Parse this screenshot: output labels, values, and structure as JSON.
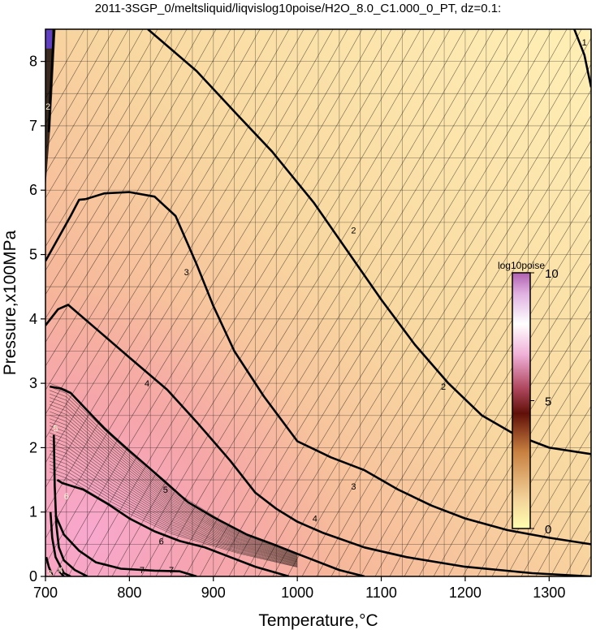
{
  "chart_data": {
    "type": "heatmap",
    "title": "2011-3SGP_0/meltsliquid/liqvislog10poise/H2O_8.0_C1.000_0_PT, dz=0.1:",
    "xlabel": "Temperature,°C",
    "ylabel": "Pressure,x100MPa",
    "xlim": [
      700,
      1350
    ],
    "ylim": [
      0,
      8.5
    ],
    "x_ticks": [
      700,
      800,
      900,
      1000,
      1100,
      1200,
      1300
    ],
    "y_ticks": [
      0,
      1,
      2,
      3,
      4,
      5,
      6,
      7,
      8
    ],
    "x_grid_step": 25,
    "y_grid_step": 0.5,
    "grid": true,
    "colorbar": {
      "title": "log10poise",
      "range": [
        0,
        10
      ],
      "ticks": [
        0,
        5,
        10
      ],
      "colors": [
        "#ffffb0",
        "#f2d098",
        "#c88040",
        "#601008",
        "#b04860",
        "#f0b0d8",
        "#ffffff",
        "#e0b0e0",
        "#b060b0"
      ]
    },
    "contours": [
      {
        "level": 2,
        "points": [
          [
            700,
            4.9
          ],
          [
            730,
            5.6
          ],
          [
            740,
            5.85
          ],
          [
            748,
            5.86
          ]
        ],
        "labels": []
      },
      {
        "level": 3,
        "points": [
          [
            748,
            5.86
          ],
          [
            770,
            5.95
          ],
          [
            800,
            5.97
          ],
          [
            830,
            5.9
          ],
          [
            855,
            5.6
          ],
          [
            880,
            4.85
          ],
          [
            900,
            4.2
          ],
          [
            925,
            3.5
          ],
          [
            960,
            2.8
          ],
          [
            1000,
            2.1
          ],
          [
            1040,
            1.85
          ],
          [
            1080,
            1.65
          ],
          [
            1120,
            1.35
          ],
          [
            1160,
            1.1
          ],
          [
            1200,
            0.9
          ],
          [
            1250,
            0.72
          ],
          [
            1300,
            0.6
          ],
          [
            1350,
            0.5
          ]
        ],
        "labels": [
          [
            868,
            4.73
          ],
          [
            1067,
            1.4
          ]
        ]
      },
      {
        "level": 2,
        "points": [
          [
            822,
            8.5
          ],
          [
            880,
            7.85
          ],
          [
            930,
            7.15
          ],
          [
            970,
            6.6
          ],
          [
            1020,
            5.8
          ],
          [
            1060,
            5.05
          ],
          [
            1100,
            4.3
          ],
          [
            1140,
            3.6
          ],
          [
            1180,
            3.0
          ],
          [
            1220,
            2.5
          ],
          [
            1260,
            2.2
          ],
          [
            1300,
            2.0
          ],
          [
            1350,
            1.9
          ]
        ],
        "labels": [
          [
            1067,
            5.38
          ],
          [
            1174,
            2.95
          ]
        ]
      },
      {
        "level": 4,
        "points": [
          [
            700,
            3.9
          ],
          [
            715,
            4.15
          ],
          [
            727,
            4.22
          ],
          [
            760,
            3.85
          ],
          [
            800,
            3.4
          ],
          [
            845,
            2.9
          ],
          [
            880,
            2.4
          ],
          [
            920,
            1.8
          ],
          [
            950,
            1.3
          ],
          [
            975,
            1.05
          ],
          [
            1000,
            0.85
          ],
          [
            1030,
            0.68
          ],
          [
            1080,
            0.45
          ],
          [
            1130,
            0.3
          ],
          [
            1200,
            0.15
          ],
          [
            1280,
            0.05
          ],
          [
            1350,
            0.0
          ]
        ],
        "labels": [
          [
            821,
            3.0
          ],
          [
            1021,
            0.9
          ]
        ]
      },
      {
        "level": 5,
        "points": [
          [
            705,
            2.95
          ],
          [
            718,
            2.92
          ],
          [
            730,
            2.85
          ],
          [
            770,
            2.3
          ],
          [
            800,
            1.95
          ],
          [
            840,
            1.5
          ],
          [
            870,
            1.15
          ],
          [
            900,
            0.92
          ],
          [
            940,
            0.65
          ],
          [
            975,
            0.48
          ],
          [
            1000,
            0.35
          ],
          [
            1050,
            0.1
          ],
          [
            1080,
            0.0
          ]
        ],
        "labels": [
          [
            843,
            1.35
          ]
        ]
      },
      {
        "level": 6,
        "points": [
          [
            714,
            1.5
          ],
          [
            720,
            1.45
          ],
          [
            745,
            1.35
          ],
          [
            775,
            1.12
          ],
          [
            800,
            0.9
          ],
          [
            830,
            0.7
          ],
          [
            860,
            0.55
          ],
          [
            890,
            0.45
          ],
          [
            920,
            0.3
          ],
          [
            950,
            0.15
          ],
          [
            990,
            0.0
          ]
        ],
        "labels": [
          [
            838,
            0.55
          ]
        ]
      },
      {
        "level": 7,
        "points": [
          [
            712,
            0.95
          ],
          [
            722,
            0.65
          ],
          [
            740,
            0.4
          ],
          [
            760,
            0.22
          ],
          [
            790,
            0.12
          ],
          [
            830,
            0.09
          ],
          [
            860,
            0.08
          ],
          [
            880,
            0.0
          ]
        ],
        "labels": [
          [
            815,
            0.1
          ],
          [
            850,
            0.1
          ]
        ]
      },
      {
        "level": 5,
        "points": [
          [
            710,
            2.2
          ],
          [
            711,
            1.4
          ],
          [
            713,
            0.8
          ],
          [
            716,
            0.45
          ],
          [
            722,
            0.25
          ],
          [
            735,
            0.1
          ],
          [
            750,
            0.0
          ]
        ],
        "labels": [
          [
            712,
            2.3
          ]
        ]
      },
      {
        "level": 6,
        "points": [
          [
            706,
            1.0
          ],
          [
            708,
            0.6
          ],
          [
            712,
            0.3
          ],
          [
            722,
            0.05
          ],
          [
            730,
            0.0
          ]
        ],
        "labels": [
          [
            725,
            1.25
          ]
        ]
      },
      {
        "level": 3,
        "points": [
          [
            701,
            0.3
          ],
          [
            704,
            0.15
          ],
          [
            708,
            0.02
          ]
        ],
        "labels": [
          [
            705,
            0.05
          ]
        ]
      },
      {
        "level": 4,
        "points": [
          [
            715,
            0.1
          ],
          [
            722,
            0.0
          ]
        ],
        "labels": [
          [
            718,
            0.1
          ]
        ]
      },
      {
        "level": 1,
        "points": [
          [
            1330,
            8.5
          ],
          [
            1342,
            8.1
          ],
          [
            1350,
            7.6
          ]
        ],
        "labels": [
          [
            1342,
            8.3
          ]
        ]
      },
      {
        "level": 2,
        "points": [
          [
            704,
            6.9
          ],
          [
            706,
            7.5
          ],
          [
            708,
            8.0
          ],
          [
            710,
            8.5
          ]
        ],
        "labels": [
          [
            703,
            7.3
          ]
        ]
      }
    ]
  }
}
